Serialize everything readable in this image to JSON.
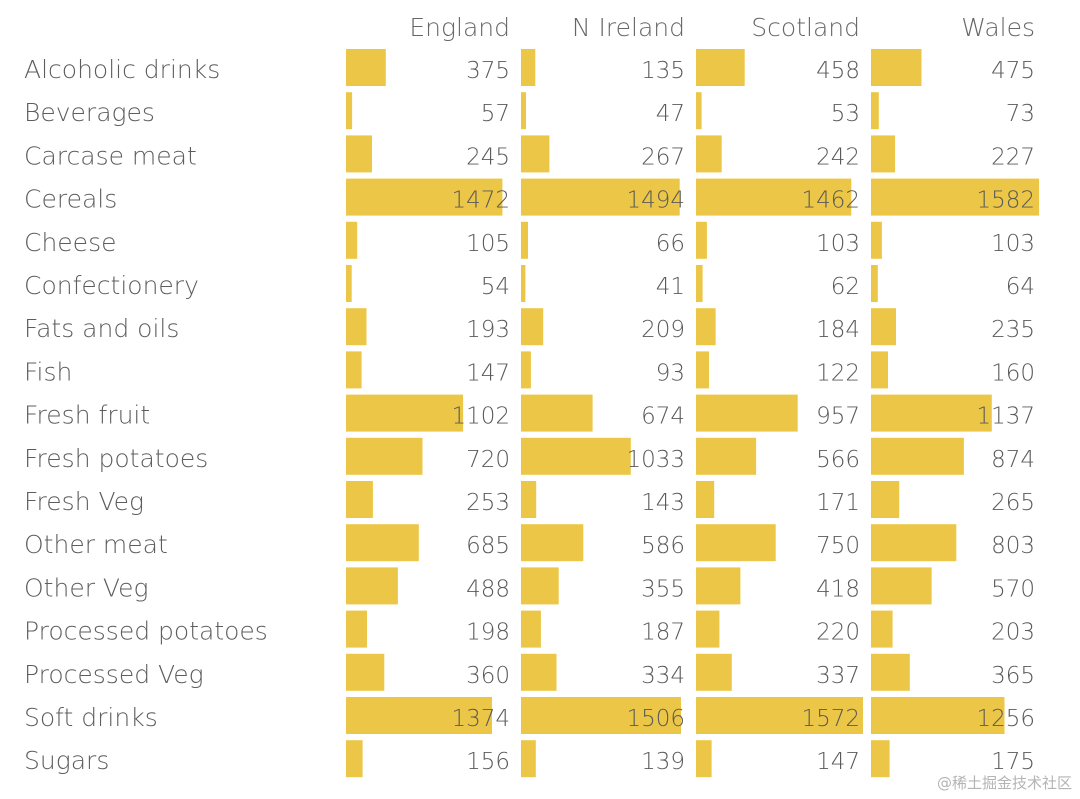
{
  "chart_data": {
    "type": "bar",
    "categories": [
      "Alcoholic drinks",
      "Beverages",
      "Carcase meat",
      "Cereals",
      "Cheese",
      "Confectionery",
      "Fats and oils",
      "Fish",
      "Fresh fruit",
      "Fresh potatoes",
      "Fresh Veg",
      "Other meat",
      "Other Veg",
      "Processed potatoes",
      "Processed Veg",
      "Soft drinks",
      "Sugars"
    ],
    "series": [
      {
        "name": "England",
        "values": [
          375,
          57,
          245,
          1472,
          105,
          54,
          193,
          147,
          1102,
          720,
          253,
          685,
          488,
          198,
          360,
          1374,
          156
        ]
      },
      {
        "name": "N Ireland",
        "values": [
          135,
          47,
          267,
          1494,
          66,
          41,
          209,
          93,
          674,
          1033,
          143,
          586,
          355,
          187,
          334,
          1506,
          139
        ]
      },
      {
        "name": "Scotland",
        "values": [
          458,
          53,
          242,
          1462,
          103,
          62,
          184,
          122,
          957,
          566,
          171,
          750,
          418,
          220,
          337,
          1572,
          147
        ]
      },
      {
        "name": "Wales",
        "values": [
          475,
          73,
          227,
          1582,
          103,
          64,
          235,
          160,
          1137,
          874,
          265,
          803,
          570,
          203,
          365,
          1256,
          175
        ]
      }
    ],
    "xlim": [
      0,
      1600
    ],
    "bar_color": "#ecc646",
    "grid": false,
    "legend": "none"
  },
  "watermark": "@稀土掘金技术社区"
}
